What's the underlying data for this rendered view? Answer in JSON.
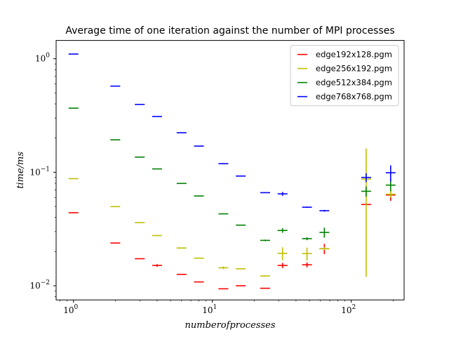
{
  "chart_data": {
    "type": "scatter",
    "title": "Average time of one iteration against the number of MPI processes",
    "xlabel": "numberofprocesses",
    "ylabel": "time/ms",
    "xscale": "log",
    "yscale": "log",
    "xlim": [
      0.75,
      240
    ],
    "ylim": [
      0.0075,
      1.45
    ],
    "x_ticks": [
      {
        "value": 1,
        "label": "10",
        "exp": "0"
      },
      {
        "value": 10,
        "label": "10",
        "exp": "1"
      },
      {
        "value": 100,
        "label": "10",
        "exp": "2"
      }
    ],
    "y_ticks": [
      {
        "value": 0.01,
        "label": "10",
        "exp": "−2"
      },
      {
        "value": 0.1,
        "label": "10",
        "exp": "−1"
      },
      {
        "value": 1,
        "label": "10",
        "exp": "0"
      }
    ],
    "grid": false,
    "legend_position": "top-right",
    "series": [
      {
        "name": "edge192x128.pgm",
        "color": "#ff0000",
        "points": [
          {
            "x": 1,
            "y": 0.044,
            "err": 0
          },
          {
            "x": 2,
            "y": 0.0238,
            "err": 0
          },
          {
            "x": 3,
            "y": 0.0173,
            "err": 0
          },
          {
            "x": 4,
            "y": 0.0151,
            "err": 0.0004
          },
          {
            "x": 6,
            "y": 0.0126,
            "err": 0
          },
          {
            "x": 8,
            "y": 0.0108,
            "err": 0
          },
          {
            "x": 12,
            "y": 0.0094,
            "err": 0
          },
          {
            "x": 16,
            "y": 0.01,
            "err": 0
          },
          {
            "x": 24,
            "y": 0.0095,
            "err": 0
          },
          {
            "x": 32,
            "y": 0.0151,
            "err": 0.0008
          },
          {
            "x": 48,
            "y": 0.0153,
            "err": 0.0008
          },
          {
            "x": 64,
            "y": 0.0212,
            "err": 0.0022
          },
          {
            "x": 128,
            "y": 0.052,
            "err": 0
          },
          {
            "x": 192,
            "y": 0.063,
            "err": 0.007
          }
        ]
      },
      {
        "name": "edge256x192.pgm",
        "color": "#bfbf00",
        "points": [
          {
            "x": 1,
            "y": 0.0878,
            "err": 0
          },
          {
            "x": 2,
            "y": 0.0498,
            "err": 0
          },
          {
            "x": 3,
            "y": 0.036,
            "err": 0
          },
          {
            "x": 4,
            "y": 0.0277,
            "err": 0
          },
          {
            "x": 6,
            "y": 0.0215,
            "err": 0
          },
          {
            "x": 8,
            "y": 0.0175,
            "err": 0
          },
          {
            "x": 12,
            "y": 0.0144,
            "err": 0.0004
          },
          {
            "x": 16,
            "y": 0.0141,
            "err": 0
          },
          {
            "x": 24,
            "y": 0.0122,
            "err": 0
          },
          {
            "x": 32,
            "y": 0.0193,
            "err": 0.0025
          },
          {
            "x": 48,
            "y": 0.0192,
            "err": 0.0025
          },
          {
            "x": 64,
            "y": 0.0212,
            "err": 0.0006
          },
          {
            "x": 128,
            "y": 0.087,
            "err": 0.075
          },
          {
            "x": 192,
            "y": 0.064,
            "err": 0.004
          }
        ]
      },
      {
        "name": "edge512x384.pgm",
        "color": "#008000",
        "points": [
          {
            "x": 1,
            "y": 0.367,
            "err": 0
          },
          {
            "x": 2,
            "y": 0.193,
            "err": 0
          },
          {
            "x": 3,
            "y": 0.136,
            "err": 0
          },
          {
            "x": 4,
            "y": 0.107,
            "err": 0
          },
          {
            "x": 6,
            "y": 0.0797,
            "err": 0
          },
          {
            "x": 8,
            "y": 0.0618,
            "err": 0
          },
          {
            "x": 12,
            "y": 0.043,
            "err": 0
          },
          {
            "x": 16,
            "y": 0.0342,
            "err": 0
          },
          {
            "x": 24,
            "y": 0.0251,
            "err": 0.0004
          },
          {
            "x": 32,
            "y": 0.0307,
            "err": 0.0014
          },
          {
            "x": 48,
            "y": 0.026,
            "err": 0.0008
          },
          {
            "x": 64,
            "y": 0.0295,
            "err": 0.003
          },
          {
            "x": 128,
            "y": 0.068,
            "err": 0.007
          },
          {
            "x": 192,
            "y": 0.077,
            "err": 0.009
          }
        ]
      },
      {
        "name": "edge768x768.pgm",
        "color": "#0000ff",
        "points": [
          {
            "x": 1,
            "y": 1.1,
            "err": 0
          },
          {
            "x": 2,
            "y": 0.574,
            "err": 0
          },
          {
            "x": 3,
            "y": 0.396,
            "err": 0
          },
          {
            "x": 4,
            "y": 0.31,
            "err": 0
          },
          {
            "x": 6,
            "y": 0.223,
            "err": 0
          },
          {
            "x": 8,
            "y": 0.17,
            "err": 0
          },
          {
            "x": 12,
            "y": 0.119,
            "err": 0
          },
          {
            "x": 16,
            "y": 0.0926,
            "err": 0
          },
          {
            "x": 24,
            "y": 0.0661,
            "err": 0
          },
          {
            "x": 32,
            "y": 0.0645,
            "err": 0.0025
          },
          {
            "x": 48,
            "y": 0.0492,
            "err": 0.0006
          },
          {
            "x": 64,
            "y": 0.0458,
            "err": 0.0008
          },
          {
            "x": 128,
            "y": 0.09,
            "err": 0.008
          },
          {
            "x": 192,
            "y": 0.099,
            "err": 0.016
          }
        ]
      }
    ]
  }
}
